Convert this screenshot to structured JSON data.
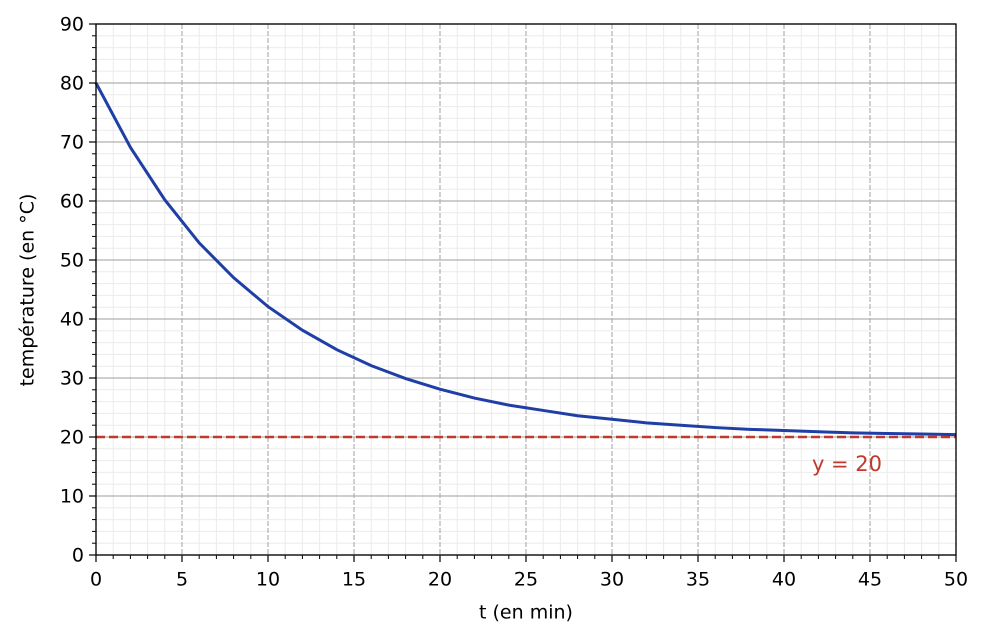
{
  "chart_data": {
    "type": "line",
    "x_label": "t (en min)",
    "y_label": "température (en °C)",
    "x": [
      0,
      2,
      4,
      6,
      8,
      10,
      12,
      14,
      16,
      18,
      20,
      22,
      24,
      26,
      28,
      30,
      32,
      34,
      36,
      38,
      40,
      42,
      44,
      46,
      48,
      50
    ],
    "series": [
      {
        "color": "#1f3fa6",
        "values": [
          80,
          69.1,
          60.2,
          52.9,
          47.0,
          42.1,
          38.1,
          34.8,
          32.1,
          29.9,
          28.1,
          26.6,
          25.4,
          24.5,
          23.6,
          23.0,
          22.4,
          22.0,
          21.6,
          21.3,
          21.1,
          20.9,
          20.7,
          20.6,
          20.5,
          20.4
        ]
      }
    ],
    "hline": {
      "y": 20,
      "color": "#c0392b",
      "label": "y = 20"
    },
    "xlim": [
      0,
      50
    ],
    "xticks": [
      0,
      5,
      10,
      15,
      20,
      25,
      30,
      35,
      40,
      45,
      50
    ],
    "ylim": [
      0,
      90
    ],
    "yticks": [
      0,
      10,
      20,
      30,
      40,
      50,
      60,
      70,
      80,
      90
    ],
    "grid": true,
    "minor_grid": true
  }
}
